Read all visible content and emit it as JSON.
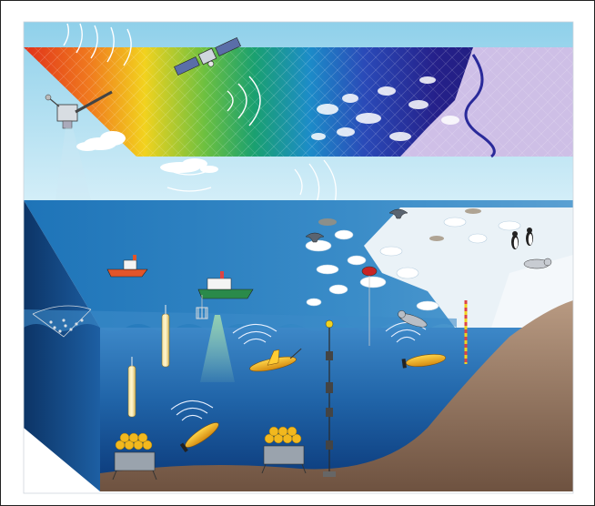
{
  "figure": {
    "description_free": true,
    "colors": {
      "sky_top": "#8fd0ea",
      "sky_bottom": "#c9e9f6",
      "ocean_surface": "#2a7fc0",
      "ocean_deep": "#0e3f80",
      "seafloor": "#8a6a52",
      "sea_ice": "#e8f0f5",
      "map_warm": "#e03a1e",
      "map_mid": "#38b04a",
      "map_cold": "#1c1a7a",
      "ice_map": "#c8b8e0"
    },
    "icons": [
      "satellite-icon",
      "radar-satellite-icon",
      "research-ship-icon",
      "supply-ship-icon",
      "profiling-float-icon",
      "underwater-glider-icon",
      "autonomous-vehicle-icon",
      "mooring-line-icon",
      "seafloor-lander-icon",
      "whale-tail-icon",
      "penguin-icon",
      "seal-icon",
      "buoy-icon",
      "cloud-icon"
    ]
  }
}
